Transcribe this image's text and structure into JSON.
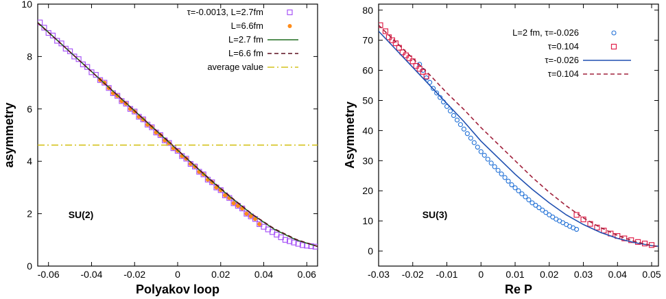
{
  "chart_data": [
    {
      "type": "scatter",
      "xlabel": "Polyakov loop",
      "ylabel": "asymmetry",
      "xlim": [
        -0.065,
        0.065
      ],
      "ylim": [
        0,
        10
      ],
      "xticks": [
        -0.06,
        -0.04,
        -0.02,
        0,
        0.02,
        0.04,
        0.06
      ],
      "xtick_labels": [
        "-0.06",
        "-0.04",
        "-0.02",
        "0",
        "0.02",
        "0.04",
        "0.06"
      ],
      "yticks": [
        0,
        2,
        4,
        6,
        8,
        10
      ],
      "ytick_labels": [
        "0",
        "2",
        "4",
        "6",
        "8",
        "10"
      ],
      "annotation": "SU(2)",
      "legend_position": "top-right",
      "colors": {
        "purple": "#a855f7",
        "orange": "#ff8c1a",
        "green": "#1f6b1f",
        "maroon": "#5a0f1e",
        "gold": "#d4c21a"
      },
      "series": [
        {
          "name": "τ=-0.0013, L=2.7fm",
          "kind": "scatter",
          "marker": "open-square",
          "color": "#a855f7",
          "x": [
            -0.064,
            -0.062,
            -0.06,
            -0.058,
            -0.056,
            -0.054,
            -0.052,
            -0.05,
            -0.048,
            -0.046,
            -0.044,
            -0.042,
            -0.04,
            -0.038,
            -0.036,
            -0.034,
            -0.032,
            -0.03,
            -0.028,
            -0.026,
            -0.024,
            -0.022,
            -0.02,
            -0.018,
            -0.016,
            -0.014,
            -0.012,
            -0.01,
            -0.008,
            -0.006,
            -0.004,
            -0.002,
            0.0,
            0.002,
            0.004,
            0.006,
            0.008,
            0.01,
            0.012,
            0.014,
            0.016,
            0.018,
            0.02,
            0.022,
            0.024,
            0.026,
            0.028,
            0.03,
            0.032,
            0.034,
            0.036,
            0.038,
            0.04,
            0.042,
            0.044,
            0.046,
            0.048,
            0.05,
            0.052,
            0.054,
            0.056,
            0.058,
            0.06,
            0.062,
            0.064
          ],
          "y": [
            9.3,
            9.1,
            8.9,
            8.8,
            8.6,
            8.5,
            8.3,
            8.2,
            8.0,
            7.9,
            7.7,
            7.6,
            7.4,
            7.3,
            7.1,
            7.0,
            6.8,
            6.6,
            6.5,
            6.3,
            6.2,
            6.0,
            5.9,
            5.7,
            5.6,
            5.4,
            5.3,
            5.1,
            5.0,
            4.8,
            4.7,
            4.5,
            4.4,
            4.2,
            4.1,
            3.9,
            3.8,
            3.6,
            3.5,
            3.3,
            3.2,
            3.0,
            2.9,
            2.7,
            2.6,
            2.4,
            2.3,
            2.2,
            2.0,
            1.9,
            1.8,
            1.6,
            1.5,
            1.4,
            1.3,
            1.2,
            1.1,
            1.0,
            0.95,
            0.9,
            0.85,
            0.8,
            0.78,
            0.76,
            0.74
          ]
        },
        {
          "name": "L=6.6fm",
          "kind": "scatter",
          "marker": "filled-circle",
          "color": "#ff8c1a",
          "x": [
            -0.036,
            -0.034,
            -0.032,
            -0.03,
            -0.028,
            -0.026,
            -0.024,
            -0.022,
            -0.02,
            -0.018,
            -0.016,
            -0.014,
            -0.012,
            -0.01,
            -0.008,
            -0.006,
            -0.004,
            -0.002,
            0.0,
            0.002,
            0.004,
            0.006,
            0.008,
            0.01,
            0.012,
            0.014,
            0.016,
            0.018,
            0.02,
            0.022,
            0.024,
            0.026,
            0.028,
            0.03,
            0.032,
            0.034,
            0.036,
            0.038
          ],
          "y": [
            7.1,
            7.0,
            6.8,
            6.6,
            6.5,
            6.3,
            6.2,
            6.0,
            5.9,
            5.7,
            5.6,
            5.4,
            5.3,
            5.1,
            5.0,
            4.8,
            4.7,
            4.5,
            4.4,
            4.2,
            4.1,
            3.9,
            3.8,
            3.6,
            3.5,
            3.3,
            3.2,
            3.0,
            2.9,
            2.7,
            2.6,
            2.4,
            2.3,
            2.2,
            2.0,
            1.9,
            1.8,
            1.6
          ]
        },
        {
          "name": "L=2.7 fm",
          "kind": "line",
          "style": "solid",
          "color": "#1f6b1f",
          "x": [
            -0.065,
            -0.055,
            -0.045,
            -0.035,
            -0.025,
            -0.015,
            -0.005,
            0.005,
            0.015,
            0.025,
            0.035,
            0.045,
            0.055,
            0.065
          ],
          "y": [
            9.3,
            8.55,
            7.8,
            7.05,
            6.3,
            5.55,
            4.8,
            4.05,
            3.3,
            2.6,
            1.95,
            1.4,
            1.0,
            0.75
          ]
        },
        {
          "name": "L=6.6 fm",
          "kind": "line",
          "style": "dashed",
          "color": "#5a0f1e",
          "x": [
            -0.065,
            -0.055,
            -0.045,
            -0.035,
            -0.025,
            -0.015,
            -0.005,
            0.005,
            0.015,
            0.025,
            0.035,
            0.045,
            0.055,
            0.065
          ],
          "y": [
            9.28,
            8.55,
            7.8,
            7.05,
            6.3,
            5.55,
            4.82,
            4.05,
            3.32,
            2.62,
            1.96,
            1.42,
            1.02,
            0.75
          ]
        },
        {
          "name": "average value",
          "kind": "line",
          "style": "dashdot",
          "color": "#d4c21a",
          "x": [
            -0.065,
            0.065
          ],
          "y": [
            4.62,
            4.62
          ]
        }
      ]
    },
    {
      "type": "scatter",
      "xlabel": "Re P",
      "ylabel": "Asymmetry",
      "xlim": [
        -0.03,
        0.052
      ],
      "ylim": [
        -5,
        82
      ],
      "xticks": [
        -0.03,
        -0.02,
        -0.01,
        0,
        0.01,
        0.02,
        0.03,
        0.04,
        0.05
      ],
      "xtick_labels": [
        "-0.03",
        "-0.02",
        "-0.01",
        "0",
        "0.01",
        "0.02",
        "0.03",
        "0.04",
        "0.05"
      ],
      "yticks": [
        0,
        10,
        20,
        30,
        40,
        50,
        60,
        70,
        80
      ],
      "ytick_labels": [
        "0",
        "10",
        "20",
        "30",
        "40",
        "50",
        "60",
        "70",
        "80"
      ],
      "annotation": "SU(3)",
      "legend_position": "top-right",
      "colors": {
        "blue": "#1f6fd6",
        "red": "#e0204a",
        "bluefit": "#1f4fb0",
        "maroon": "#a0203a"
      },
      "series": [
        {
          "name": "L=2 fm, τ=-0.026",
          "kind": "scatter",
          "marker": "open-circle",
          "color": "#1f6fd6",
          "x": [
            -0.018,
            -0.017,
            -0.016,
            -0.015,
            -0.014,
            -0.013,
            -0.012,
            -0.011,
            -0.01,
            -0.009,
            -0.008,
            -0.007,
            -0.006,
            -0.005,
            -0.004,
            -0.003,
            -0.002,
            -0.001,
            0.0,
            0.001,
            0.002,
            0.003,
            0.004,
            0.005,
            0.006,
            0.007,
            0.008,
            0.009,
            0.01,
            0.011,
            0.012,
            0.013,
            0.014,
            0.015,
            0.016,
            0.017,
            0.018,
            0.019,
            0.02,
            0.021,
            0.022,
            0.023,
            0.024,
            0.025,
            0.026,
            0.027,
            0.028
          ],
          "y": [
            62.0,
            60.0,
            57.5,
            56.0,
            54.0,
            52.5,
            51.0,
            49.5,
            48.0,
            46.5,
            45.0,
            43.5,
            42.0,
            40.5,
            39.0,
            37.5,
            36.0,
            34.5,
            33.0,
            31.8,
            30.5,
            29.2,
            28.0,
            26.8,
            25.6,
            24.4,
            23.2,
            22.0,
            21.0,
            20.0,
            19.0,
            18.0,
            17.0,
            16.0,
            15.2,
            14.4,
            13.6,
            12.8,
            12.0,
            11.3,
            10.6,
            10.0,
            9.4,
            8.8,
            8.2,
            7.7,
            7.2
          ]
        },
        {
          "name": "τ=0.104",
          "kind": "scatter",
          "marker": "open-square",
          "color": "#e0204a",
          "x": [
            -0.0295,
            -0.028,
            -0.027,
            -0.026,
            -0.025,
            -0.024,
            -0.023,
            -0.022,
            -0.021,
            -0.02,
            -0.019,
            -0.018,
            -0.017,
            -0.016,
            0.028,
            0.03,
            0.032,
            0.034,
            0.036,
            0.038,
            0.04,
            0.042,
            0.044,
            0.046,
            0.048,
            0.05
          ],
          "y": [
            75.0,
            73.0,
            71.0,
            70.0,
            69.0,
            67.5,
            66.0,
            65.0,
            64.0,
            63.0,
            61.5,
            60.5,
            59.5,
            58.0,
            12.0,
            10.5,
            9.0,
            7.8,
            6.8,
            5.8,
            5.0,
            4.2,
            3.6,
            3.0,
            2.5,
            2.0
          ]
        },
        {
          "name": "τ=-0.026",
          "kind": "line",
          "style": "solid",
          "color": "#1f4fb0",
          "x": [
            -0.03,
            -0.025,
            -0.02,
            -0.015,
            -0.01,
            -0.005,
            0.0,
            0.005,
            0.01,
            0.015,
            0.02,
            0.025,
            0.03,
            0.035,
            0.04,
            0.045,
            0.05,
            0.052
          ],
          "y": [
            73.0,
            67.0,
            61.0,
            55.0,
            49.0,
            43.0,
            36.5,
            31.0,
            25.5,
            20.5,
            16.0,
            12.0,
            8.8,
            6.2,
            4.2,
            2.8,
            1.8,
            1.6
          ]
        },
        {
          "name": "τ=0.104",
          "kind": "line",
          "style": "dashed",
          "color": "#a0203a",
          "x": [
            -0.03,
            -0.025,
            -0.02,
            -0.015,
            -0.01,
            -0.005,
            0.0,
            0.005,
            0.01,
            0.015,
            0.02,
            0.025,
            0.03,
            0.035,
            0.04,
            0.045,
            0.05,
            0.052
          ],
          "y": [
            75.0,
            69.5,
            64.0,
            58.5,
            52.5,
            47.0,
            41.0,
            35.5,
            30.0,
            24.5,
            19.5,
            15.0,
            11.0,
            7.8,
            5.2,
            3.2,
            1.8,
            1.4
          ]
        }
      ]
    }
  ]
}
